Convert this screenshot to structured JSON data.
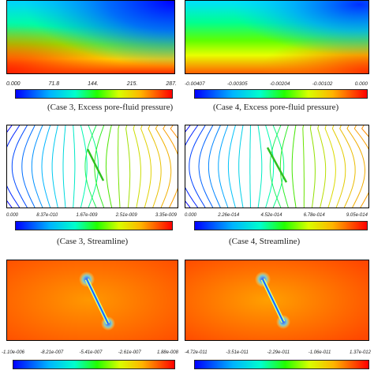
{
  "figure": {
    "rows": [
      {
        "left": {
          "ticks": [
            "0.000",
            "71.8",
            "144.",
            "215.",
            "287."
          ],
          "caption": "(Case 3, Excess pore-fluid pressure)"
        },
        "right": {
          "ticks": [
            "-0.00407",
            "-0.00305",
            "-0.00204",
            "-0.00102",
            "0.000"
          ],
          "caption": "(Case 4, Excess pore-fluid pressure)"
        }
      },
      {
        "left": {
          "ticks": [
            "0.000",
            "8.37e-010",
            "1.67e-009",
            "2.51e-009",
            "3.35e-009"
          ],
          "caption": "(Case 3, Streamline)"
        },
        "right": {
          "ticks": [
            "0.000",
            "2.26e-014",
            "4.52e-014",
            "6.78e-014",
            "9.05e-014"
          ],
          "caption": "(Case 4, Streamline)"
        }
      },
      {
        "left": {
          "ticks": [
            "-1.10e-006",
            "-8.21e-007",
            "-5.41e-007",
            "-2.61e-007",
            "1.88e-008"
          ]
        },
        "right": {
          "ticks": [
            "-4.72e-011",
            "-3.51e-011",
            "-2.29e-011",
            "-1.06e-011",
            "1.37e-012"
          ]
        }
      }
    ]
  }
}
